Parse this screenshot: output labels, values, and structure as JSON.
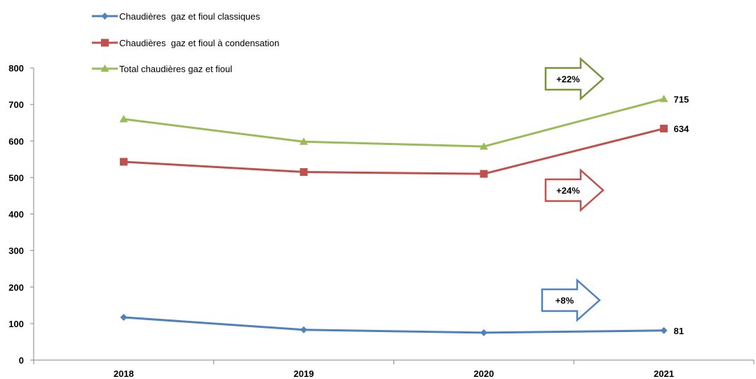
{
  "chart_data": {
    "type": "line",
    "categories": [
      "2018",
      "2019",
      "2020",
      "2021"
    ],
    "ylim": [
      0,
      800
    ],
    "yticks": [
      0,
      100,
      200,
      300,
      400,
      500,
      600,
      700,
      800
    ],
    "ytick_labels": [
      "0",
      "100",
      "200",
      "300",
      "400",
      "500",
      "600",
      "700",
      "800"
    ],
    "grid": false,
    "legend_position": "top-left",
    "series": [
      {
        "name": "Chaudières  gaz et fioul classiques",
        "color": "#4f81bd",
        "marker": "diamond",
        "values": [
          117,
          83,
          75,
          81
        ],
        "end_label": "81"
      },
      {
        "name": "Chaudières  gaz et fioul à condensation",
        "color": "#c0504d",
        "marker": "square",
        "values": [
          543,
          515,
          510,
          634
        ],
        "end_label": "634"
      },
      {
        "name": "Total chaudières gaz et fioul",
        "color": "#9bbb59",
        "marker": "triangle",
        "values": [
          660,
          598,
          585,
          715
        ],
        "end_label": "715"
      }
    ],
    "annotations": [
      {
        "label": "+22%",
        "color": "#77933c",
        "series": 2
      },
      {
        "label": "+24%",
        "color": "#c0504d",
        "series": 1
      },
      {
        "label": "+8%",
        "color": "#4f81bd",
        "series": 0
      }
    ]
  }
}
